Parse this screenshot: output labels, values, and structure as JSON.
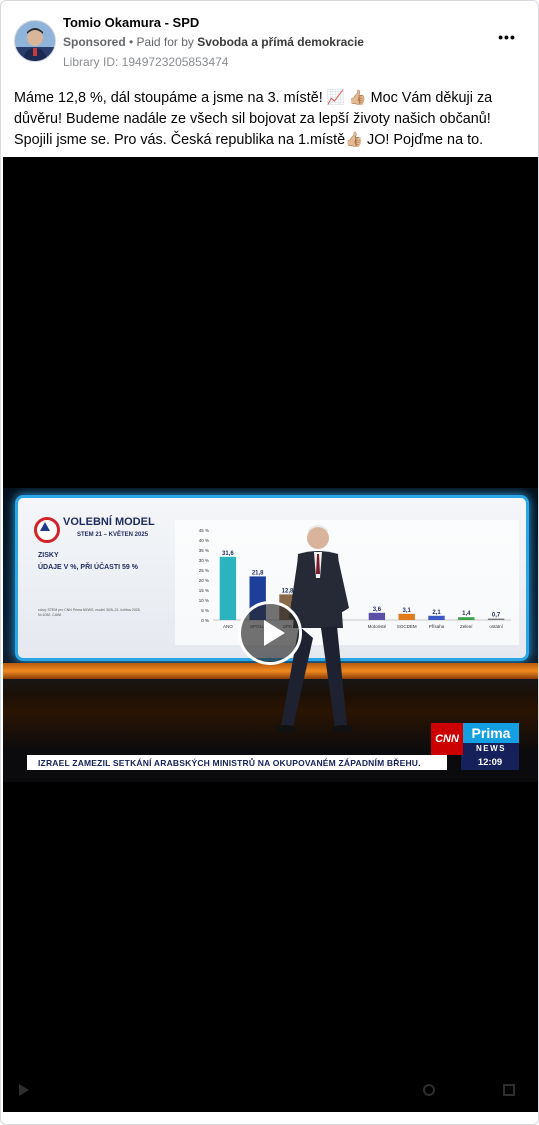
{
  "post": {
    "page_name": "Tomio Okamura - SPD",
    "sponsored_label": "Sponsored",
    "separator": " • ",
    "paid_for_prefix": "Paid for by ",
    "payer_name": "Svoboda a přímá demokracie",
    "library_id": "Library ID: 1949723205853474",
    "more_icon": "more-horizontal-icon",
    "text": "Máme 12,8 %, dál stoupáme a jsme na 3. místě! 📈 👍🏼 Moc Vám děkuji za důvěru! Budeme nadále ze všech sil bojovat za lepší životy našich občanů! Spojili jsme se. Pro vás. Česká republika na 1.místě👍🏼 JO! Pojďme na to."
  },
  "video": {
    "play_icon": "play-icon",
    "screen_title": "VOLEBNÍ MODEL",
    "screen_subtitle": "STEM 21 – KVĚTEN 2025",
    "screen_label1": "ZISKY",
    "screen_label2": "ÚDAJE V %, PŘI ÚČASTI 59 %",
    "screen_source": "zdroj: STEM pro CNN Prima NEWS, model 30/5–21. května 2025, N=1052, CAWI",
    "ticker": "IZRAEL ZAMEZIL SETKÁNÍ ARABSKÝCH MINISTRŮ NA OKUPOVANÉM ZÁPADNÍM BŘEHU.",
    "clock": "12:09",
    "broadcaster_cnn": "CNN",
    "broadcaster_prima": "Prima",
    "broadcaster_news": "NEWS",
    "colors": {
      "screen_border": "#2aa6e6",
      "ticker_navy": "#16205b",
      "cnn_red": "#cc0000",
      "prima_blue": "#14a0e0"
    }
  },
  "chart_data": {
    "type": "bar",
    "categories": [
      "ANO",
      "SPOLU",
      "SPD",
      "",
      "",
      "Motoristé",
      "SOCDEM",
      "Přísaha",
      "Zelení",
      "ostatní"
    ],
    "values": [
      31.6,
      21.8,
      12.8,
      null,
      null,
      3.6,
      3.1,
      2.1,
      1.4,
      0.7
    ],
    "value_labels": [
      "31,6",
      "21,8",
      "12,8",
      "",
      "",
      "3,6",
      "3,1",
      "2,1",
      "1,4",
      "0,7"
    ],
    "yticks": [
      "45 %",
      "40 %",
      "35 %",
      "30 %",
      "25 %",
      "20 %",
      "15 %",
      "10 %",
      "5 %",
      "0 %"
    ],
    "ylim": [
      0,
      45
    ],
    "colors": [
      "#2bb3c0",
      "#1d3f9a",
      "#8a6a4a",
      "#888888",
      "#888888",
      "#5b4fa8",
      "#e07a1a",
      "#3b58c8",
      "#3aa34a",
      "#777777"
    ]
  }
}
